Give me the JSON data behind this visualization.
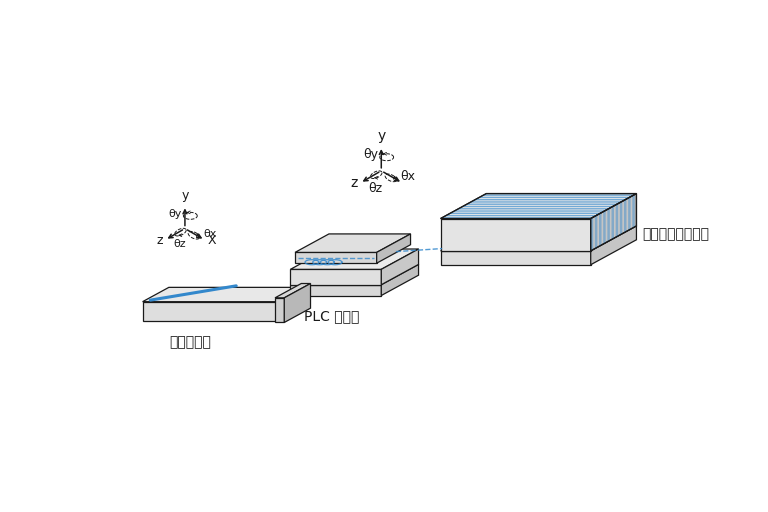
{
  "bg_color": "#ffffff",
  "line_color": "#1a1a1a",
  "blue_color": "#3388cc",
  "face_top": "#eeeeee",
  "face_side_right": "#cccccc",
  "face_front": "#e2e2e2",
  "label_fiber": "光ファイバ",
  "label_plc": "PLC チップ",
  "label_array": "光ファイバアレイ",
  "n_stripes": 11,
  "n_waveguide_loops": 4
}
